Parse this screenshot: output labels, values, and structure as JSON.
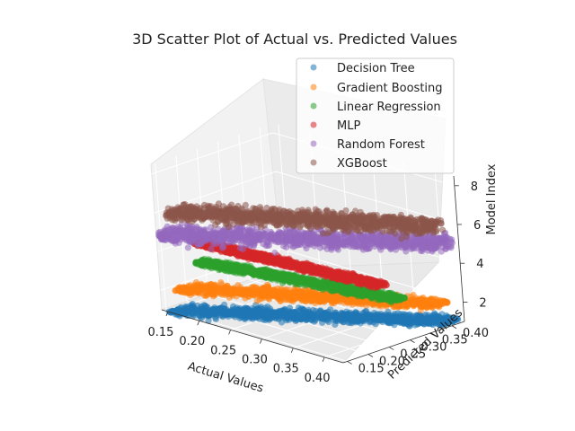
{
  "chart_data": {
    "type": "scatter",
    "title": "3D Scatter Plot of Actual vs. Predicted Values",
    "xlabel": "Actual Values",
    "ylabel": "Predicted Values",
    "zlabel": "Model Index",
    "x_ticks": [
      "0.15",
      "0.20",
      "0.25",
      "0.30",
      "0.35",
      "0.40"
    ],
    "y_ticks": [
      "0.15",
      "0.20",
      "0.25",
      "0.30",
      "0.35",
      "0.40"
    ],
    "z_ticks": [
      "2",
      "4",
      "6",
      "8"
    ],
    "xlim": [
      0.14,
      0.43
    ],
    "ylim": [
      0.14,
      0.43
    ],
    "zlim": [
      1.0,
      8.5
    ],
    "legend_position": "top-right",
    "grid": true,
    "series": [
      {
        "name": "Decision Tree",
        "color": "#1f77b4",
        "z": 1,
        "x_range": [
          0.15,
          0.42
        ],
        "y_range": [
          0.15,
          0.42
        ]
      },
      {
        "name": "Gradient Boosting",
        "color": "#ff7f0e",
        "z": 2,
        "x_range": [
          0.15,
          0.42
        ],
        "y_range": [
          0.17,
          0.4
        ]
      },
      {
        "name": "Linear Regression",
        "color": "#2ca02c",
        "z": 3,
        "x_range": [
          0.15,
          0.42
        ],
        "y_range": [
          0.22,
          0.3
        ]
      },
      {
        "name": "MLP",
        "color": "#d62728",
        "z": 4,
        "x_range": [
          0.15,
          0.42
        ],
        "y_range": [
          0.22,
          0.26
        ]
      },
      {
        "name": "Random Forest",
        "color": "#9467bd",
        "z": 5,
        "x_range": [
          0.15,
          0.42
        ],
        "y_range": [
          0.14,
          0.42
        ]
      },
      {
        "name": "XGBoost",
        "color": "#8c564b",
        "z": 6,
        "x_range": [
          0.15,
          0.42
        ],
        "y_range": [
          0.16,
          0.4
        ]
      }
    ]
  }
}
